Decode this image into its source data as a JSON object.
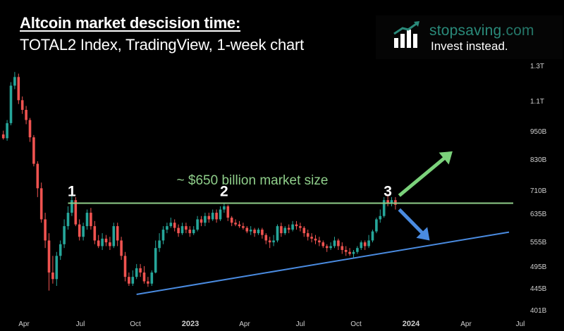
{
  "title": "Altcoin market descision time:",
  "subtitle": "TOTAL2 Index, TradingView, 1-week chart",
  "brand": {
    "name_main": "stopsaving",
    "name_suffix": ".com",
    "tagline": "Invest instead.",
    "logo_icon": "bar-chart-arrow-icon",
    "color": "#2a8a7a"
  },
  "chart_data": {
    "type": "candlestick",
    "title": "",
    "xlabel": "",
    "ylabel": "",
    "y_scale": "log",
    "ylim": [
      390,
      1350
    ],
    "x_ticks": [
      "Apr",
      "Jul",
      "Oct",
      "2023",
      "Apr",
      "Jul",
      "Oct",
      "2024",
      "Apr",
      "Jul"
    ],
    "y_ticks": [
      "1.3T",
      "1.1T",
      "950B",
      "830B",
      "710B",
      "635B",
      "555B",
      "495B",
      "445B",
      "401B"
    ],
    "colors": {
      "up": "#26a69a",
      "down": "#ef5350",
      "resistance": "#8fce8a",
      "support": "#4a8be0",
      "up_arrow": "#7bd27b",
      "down_arrow": "#4a8be0"
    },
    "resistance": {
      "value": 670,
      "label": "~ $650 billion market size"
    },
    "support_line": {
      "from_week": 35,
      "from_value": 432,
      "to_week": 119,
      "to_value": 583
    },
    "pivot_labels": [
      {
        "label": "1",
        "week": 18
      },
      {
        "label": "2",
        "week": 58
      },
      {
        "label": "3",
        "week": 101
      }
    ],
    "arrows": [
      {
        "direction": "up",
        "from_week": 104,
        "from_value": 695,
        "to_week": 118,
        "to_value": 860
      },
      {
        "direction": "down",
        "from_week": 104,
        "from_value": 650,
        "to_week": 112,
        "to_value": 560
      }
    ],
    "candles": [
      [
        933,
        916,
        950,
        910
      ],
      [
        916,
        985,
        1000,
        905
      ],
      [
        985,
        1180,
        1200,
        975
      ],
      [
        1180,
        1230,
        1260,
        1160
      ],
      [
        1230,
        1100,
        1250,
        1080
      ],
      [
        1100,
        1050,
        1120,
        1030
      ],
      [
        1050,
        1000,
        1070,
        980
      ],
      [
        1000,
        920,
        1010,
        900
      ],
      [
        920,
        810,
        930,
        800
      ],
      [
        810,
        720,
        820,
        690
      ],
      [
        720,
        620,
        740,
        610
      ],
      [
        620,
        560,
        640,
        540
      ],
      [
        560,
        480,
        580,
        440
      ],
      [
        480,
        465,
        520,
        455
      ],
      [
        465,
        520,
        530,
        450
      ],
      [
        520,
        550,
        560,
        510
      ],
      [
        550,
        600,
        620,
        540
      ],
      [
        600,
        640,
        660,
        590
      ],
      [
        640,
        680,
        700,
        630
      ],
      [
        680,
        605,
        690,
        600
      ],
      [
        605,
        570,
        620,
        560
      ],
      [
        570,
        600,
        610,
        560
      ],
      [
        600,
        640,
        650,
        590
      ],
      [
        640,
        600,
        655,
        590
      ],
      [
        600,
        560,
        615,
        550
      ],
      [
        560,
        545,
        575,
        540
      ],
      [
        545,
        565,
        580,
        535
      ],
      [
        565,
        555,
        575,
        545
      ],
      [
        555,
        545,
        570,
        535
      ],
      [
        545,
        600,
        610,
        540
      ],
      [
        600,
        560,
        610,
        545
      ],
      [
        560,
        520,
        570,
        510
      ],
      [
        520,
        470,
        530,
        460
      ],
      [
        470,
        455,
        480,
        450
      ],
      [
        455,
        470,
        485,
        450
      ],
      [
        470,
        490,
        500,
        465
      ],
      [
        490,
        480,
        500,
        470
      ],
      [
        480,
        460,
        495,
        455
      ],
      [
        460,
        455,
        470,
        448
      ],
      [
        455,
        480,
        485,
        450
      ],
      [
        480,
        540,
        560,
        478
      ],
      [
        540,
        560,
        580,
        530
      ],
      [
        560,
        590,
        600,
        550
      ],
      [
        590,
        600,
        610,
        580
      ],
      [
        600,
        610,
        625,
        595
      ],
      [
        610,
        595,
        620,
        585
      ],
      [
        595,
        580,
        605,
        570
      ],
      [
        580,
        600,
        610,
        575
      ],
      [
        600,
        590,
        610,
        580
      ],
      [
        590,
        580,
        600,
        570
      ],
      [
        580,
        590,
        600,
        575
      ],
      [
        590,
        620,
        630,
        585
      ],
      [
        620,
        610,
        630,
        600
      ],
      [
        610,
        630,
        640,
        600
      ],
      [
        630,
        620,
        640,
        610
      ],
      [
        620,
        640,
        650,
        615
      ],
      [
        640,
        620,
        650,
        610
      ],
      [
        620,
        650,
        660,
        615
      ],
      [
        650,
        660,
        670,
        640
      ],
      [
        660,
        625,
        665,
        615
      ],
      [
        625,
        610,
        630,
        600
      ],
      [
        610,
        605,
        620,
        600
      ],
      [
        605,
        600,
        615,
        595
      ],
      [
        600,
        595,
        610,
        590
      ],
      [
        595,
        585,
        600,
        580
      ],
      [
        585,
        590,
        600,
        575
      ],
      [
        590,
        580,
        595,
        570
      ],
      [
        580,
        590,
        595,
        575
      ],
      [
        590,
        575,
        595,
        565
      ],
      [
        575,
        560,
        580,
        550
      ],
      [
        560,
        555,
        570,
        540
      ],
      [
        555,
        560,
        575,
        545
      ],
      [
        560,
        600,
        605,
        555
      ],
      [
        600,
        580,
        610,
        570
      ],
      [
        580,
        595,
        600,
        575
      ],
      [
        595,
        590,
        605,
        580
      ],
      [
        590,
        605,
        615,
        585
      ],
      [
        605,
        600,
        615,
        590
      ],
      [
        600,
        595,
        610,
        585
      ],
      [
        595,
        580,
        600,
        570
      ],
      [
        580,
        570,
        590,
        560
      ],
      [
        570,
        565,
        580,
        555
      ],
      [
        565,
        560,
        575,
        550
      ],
      [
        560,
        555,
        570,
        545
      ],
      [
        555,
        545,
        560,
        540
      ],
      [
        545,
        540,
        550,
        530
      ],
      [
        540,
        545,
        555,
        535
      ],
      [
        545,
        560,
        570,
        540
      ],
      [
        560,
        545,
        565,
        535
      ],
      [
        545,
        535,
        555,
        525
      ],
      [
        535,
        530,
        545,
        520
      ],
      [
        530,
        525,
        540,
        520
      ],
      [
        525,
        530,
        535,
        515
      ],
      [
        530,
        540,
        545,
        525
      ],
      [
        540,
        555,
        560,
        535
      ],
      [
        555,
        545,
        560,
        535
      ],
      [
        545,
        560,
        575,
        540
      ],
      [
        560,
        585,
        590,
        555
      ],
      [
        585,
        620,
        625,
        580
      ],
      [
        620,
        630,
        650,
        610
      ],
      [
        630,
        680,
        690,
        625
      ],
      [
        680,
        670,
        700,
        660
      ],
      [
        670,
        680,
        690,
        660
      ],
      [
        680,
        665,
        690,
        650
      ]
    ]
  }
}
